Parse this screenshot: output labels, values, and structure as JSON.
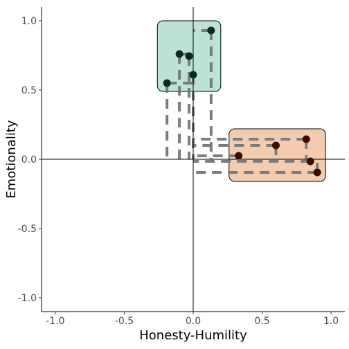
{
  "chart_data": {
    "type": "scatter",
    "xlabel": "Honesty-Humility",
    "ylabel": "Emotionality",
    "xlim": [
      -1.1,
      1.1
    ],
    "ylim": [
      -1.1,
      1.1
    ],
    "x_ticks": [
      -1.0,
      -0.5,
      0.0,
      0.5,
      1.0
    ],
    "x_tick_labels": [
      "-1.0",
      "-0.5",
      "0.0",
      "0.5",
      "1.0"
    ],
    "y_ticks": [
      -1.0,
      -0.5,
      0.0,
      0.5,
      1.0
    ],
    "y_tick_labels": [
      "-1.0",
      "-0.5",
      "0.0",
      "0.5",
      "1.0"
    ],
    "grid": false,
    "reference_lines": {
      "x": 0,
      "y": 0
    },
    "clusters": [
      {
        "fill": "#bde3d6",
        "point_color": "#0b2a1f",
        "box": {
          "x": [
            -0.26,
            0.2
          ],
          "y": [
            0.49,
            1.0
          ]
        },
        "points": [
          {
            "x": 0.13,
            "y": 0.93
          },
          {
            "x": -0.1,
            "y": 0.76
          },
          {
            "x": -0.03,
            "y": 0.745
          },
          {
            "x": 0.0,
            "y": 0.61
          },
          {
            "x": -0.19,
            "y": 0.55
          }
        ]
      },
      {
        "fill": "#f3ccb0",
        "point_color": "#3a0e00",
        "box": {
          "x": [
            0.26,
            0.96
          ],
          "y": [
            -0.16,
            0.22
          ]
        },
        "points": [
          {
            "x": 0.82,
            "y": 0.145
          },
          {
            "x": 0.6,
            "y": 0.1
          },
          {
            "x": 0.33,
            "y": 0.025
          },
          {
            "x": 0.85,
            "y": -0.015
          },
          {
            "x": 0.9,
            "y": -0.095
          }
        ]
      }
    ],
    "connector_style": {
      "color": "#777777",
      "dash": "dashed"
    }
  }
}
